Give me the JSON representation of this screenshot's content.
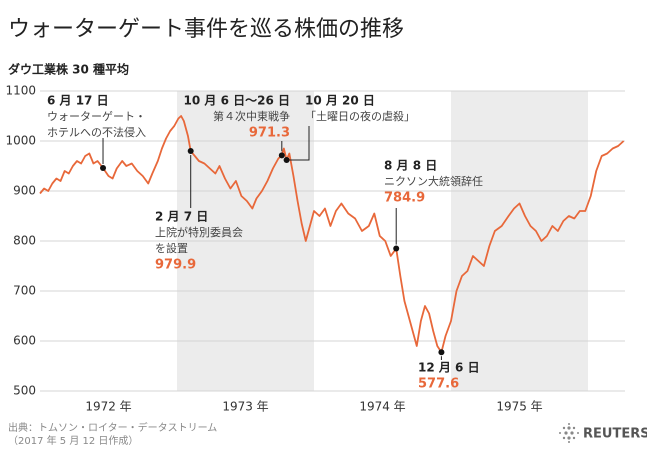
{
  "chart_data": {
    "type": "line",
    "title": "ウォーターゲート事件を巡る株価の推移",
    "subtitle": "ダウ工業株 30 種平均",
    "source": [
      "出典：トムソン・ロイター・データストリーム",
      "（2017 年 5 月 12 日作成）"
    ],
    "logo": "REUTERS",
    "color": "#e8683a",
    "grid": true,
    "xlim": [
      1972,
      1976.27
    ],
    "ylim": [
      500,
      1100
    ],
    "yticks": [
      500,
      600,
      700,
      800,
      900,
      1000,
      1100
    ],
    "xticks": [
      {
        "value": 1972.5,
        "label": "1972 年"
      },
      {
        "value": 1973.5,
        "label": "1973 年"
      },
      {
        "value": 1974.5,
        "label": "1974 年"
      },
      {
        "value": 1975.5,
        "label": "1975 年"
      }
    ],
    "shaded_periods": [
      [
        1973,
        1974
      ],
      [
        1975,
        1976
      ]
    ],
    "x": [
      1972.0,
      1972.03,
      1972.06,
      1972.09,
      1972.12,
      1972.15,
      1972.18,
      1972.21,
      1972.24,
      1972.27,
      1972.3,
      1972.33,
      1972.36,
      1972.39,
      1972.42,
      1972.46,
      1972.5,
      1972.53,
      1972.56,
      1972.6,
      1972.63,
      1972.67,
      1972.71,
      1972.75,
      1972.79,
      1972.82,
      1972.86,
      1972.89,
      1972.92,
      1972.95,
      1972.98,
      1973.01,
      1973.03,
      1973.05,
      1973.08,
      1973.1,
      1973.13,
      1973.16,
      1973.2,
      1973.24,
      1973.28,
      1973.31,
      1973.35,
      1973.39,
      1973.43,
      1973.47,
      1973.51,
      1973.55,
      1973.58,
      1973.62,
      1973.66,
      1973.7,
      1973.74,
      1973.765,
      1973.78,
      1973.8,
      1973.82,
      1973.85,
      1973.88,
      1973.91,
      1973.94,
      1973.97,
      1974.0,
      1974.04,
      1974.08,
      1974.12,
      1974.16,
      1974.2,
      1974.25,
      1974.3,
      1974.35,
      1974.4,
      1974.44,
      1974.48,
      1974.52,
      1974.56,
      1974.6,
      1974.63,
      1974.66,
      1974.69,
      1974.72,
      1974.75,
      1974.78,
      1974.81,
      1974.84,
      1974.87,
      1974.9,
      1974.93,
      1974.96,
      1975.0,
      1975.04,
      1975.08,
      1975.12,
      1975.16,
      1975.2,
      1975.24,
      1975.28,
      1975.32,
      1975.37,
      1975.42,
      1975.46,
      1975.5,
      1975.54,
      1975.58,
      1975.62,
      1975.66,
      1975.7,
      1975.74,
      1975.78,
      1975.82,
      1975.86,
      1975.9,
      1975.94,
      1975.98,
      1976.02,
      1976.06,
      1976.1,
      1976.14,
      1976.18,
      1976.22,
      1976.26
    ],
    "values": [
      895,
      905,
      900,
      915,
      925,
      920,
      940,
      935,
      950,
      960,
      955,
      970,
      975,
      955,
      960,
      946,
      930,
      925,
      945,
      960,
      950,
      955,
      940,
      930,
      915,
      935,
      960,
      985,
      1005,
      1020,
      1030,
      1045,
      1050,
      1040,
      1010,
      979.9,
      970,
      960,
      955,
      945,
      935,
      950,
      925,
      905,
      920,
      890,
      880,
      865,
      885,
      900,
      920,
      945,
      965,
      971.3,
      985,
      962,
      975,
      930,
      880,
      835,
      800,
      830,
      860,
      850,
      865,
      830,
      860,
      875,
      855,
      845,
      820,
      830,
      855,
      810,
      800,
      770,
      784.9,
      730,
      680,
      650,
      620,
      590,
      640,
      670,
      655,
      620,
      590,
      577.6,
      610,
      640,
      700,
      730,
      740,
      770,
      760,
      750,
      790,
      820,
      830,
      850,
      865,
      875,
      850,
      830,
      820,
      800,
      810,
      830,
      820,
      840,
      850,
      845,
      860,
      860,
      890,
      940,
      970,
      975,
      985,
      990,
      1000
    ],
    "annotations": [
      {
        "date": "6 月 17 日",
        "text": [
          "ウォーターゲート・",
          "ホテルへの不法侵入"
        ],
        "x": 1972.46
      },
      {
        "date": "2 月 7 日",
        "text": [
          "上院が特別委員会",
          "を設置"
        ],
        "value": 979.9,
        "x": 1973.1
      },
      {
        "date": "10 月 6 日～26 日",
        "text": [
          "第４次中東戦争"
        ],
        "value": 971.3,
        "x": 1973.765
      },
      {
        "date": "10 月 20 日",
        "text": [
          "「土曜日の夜の虐殺」"
        ],
        "x": 1973.8
      },
      {
        "date": "8 月 8 日",
        "text": [
          "ニクソン大統領辞任"
        ],
        "value": 784.9,
        "x": 1974.6
      },
      {
        "date": "12 月 6 日",
        "value": 577.6,
        "x": 1974.93
      }
    ]
  }
}
